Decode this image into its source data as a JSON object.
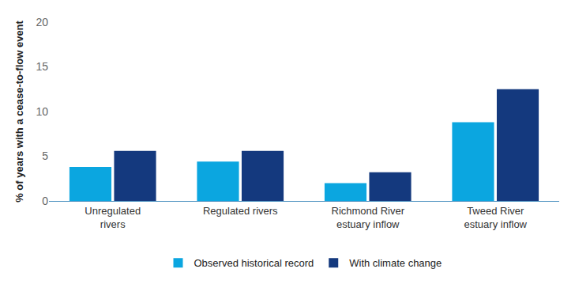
{
  "chart_data": {
    "type": "bar",
    "y_label": "% of years with a cease-to-flow event",
    "categories": [
      "Unregulated rivers",
      "Regulated rivers",
      "Richmond River estuary inflow",
      "Tweed River estuary inflow"
    ],
    "series": [
      {
        "name": "Observed historical record",
        "color": "#0ba6e0",
        "values": [
          3.8,
          4.4,
          2.0,
          8.8
        ]
      },
      {
        "name": "With climate change",
        "color": "#14397e",
        "values": [
          5.6,
          5.6,
          3.2,
          12.5
        ]
      }
    ],
    "ylim": [
      0,
      20
    ],
    "yticks": [
      0,
      5,
      10,
      15,
      20
    ],
    "grid": false,
    "legend": "bottom"
  }
}
